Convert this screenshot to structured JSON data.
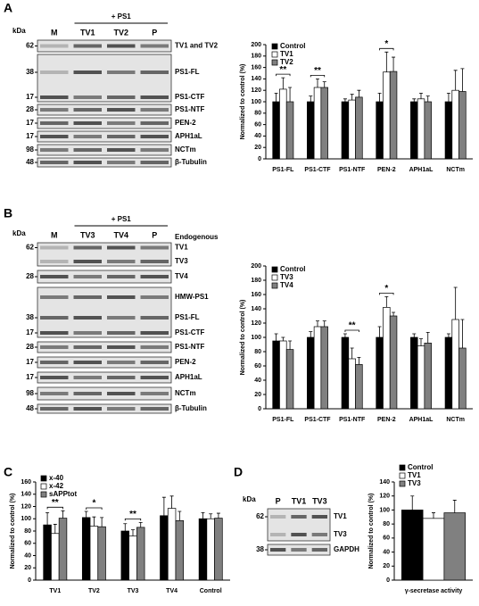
{
  "panel_labels": [
    "A",
    "B",
    "C",
    "D"
  ],
  "blots": [
    {
      "kda": "kDa",
      "group": "+ PS1",
      "lanes": [
        "M",
        "TV1",
        "TV2",
        "P"
      ],
      "header_note": null,
      "rows": [
        {
          "marker": "62",
          "label": "TV1 and TV2"
        },
        {
          "marker": "38",
          "label": "PS1-FL"
        },
        {
          "marker": "17",
          "label": "PS1-CTF"
        },
        {
          "marker": "28",
          "label": "PS1-NTF"
        },
        {
          "marker": "17",
          "label": "PEN-2"
        },
        {
          "marker": "17",
          "label": "APH1aL"
        },
        {
          "marker": "98",
          "label": "NCTm"
        },
        {
          "marker": "48",
          "label": "β-Tubulin"
        }
      ]
    },
    {
      "kda": "kDa",
      "group": "+ PS1",
      "lanes": [
        "M",
        "TV3",
        "TV4",
        "P"
      ],
      "header_note": "Endogenous",
      "rows": [
        {
          "marker": "62",
          "label": "TV1"
        },
        {
          "marker": null,
          "label": "TV3"
        },
        {
          "marker": "28",
          "label": "TV4"
        },
        {
          "marker": null,
          "label": "HMW-PS1"
        },
        {
          "marker": "38",
          "label": "PS1-FL"
        },
        {
          "marker": "17",
          "label": "PS1-CTF"
        },
        {
          "marker": "28",
          "label": "PS1-NTF"
        },
        {
          "marker": "17",
          "label": "PEN-2"
        },
        {
          "marker": "17",
          "label": "APH1aL"
        },
        {
          "marker": "98",
          "label": "NCTm"
        },
        {
          "marker": "48",
          "label": "β-Tubulin"
        }
      ]
    },
    {
      "kda": "kDa",
      "group": null,
      "lanes": [
        "P",
        "TV1",
        "TV3"
      ],
      "header_note": null,
      "rows": [
        {
          "marker": "62",
          "label": "TV1"
        },
        {
          "marker": null,
          "label": "TV3"
        },
        {
          "marker": "38",
          "label": "GAPDH"
        }
      ]
    }
  ],
  "chart_data": [
    {
      "type": "bar",
      "ylabel": "Normalized to control (%)",
      "categories": [
        "PS1-FL",
        "PS1-CTF",
        "PS1-NTF",
        "PEN-2",
        "APH1aL",
        "NCTm"
      ],
      "series": [
        {
          "name": "Control",
          "color": "#000000",
          "values": [
            100,
            100,
            100,
            100,
            100,
            100
          ],
          "errors": [
            15,
            10,
            5,
            15,
            5,
            15
          ]
        },
        {
          "name": "TV1",
          "color": "#ffffff",
          "values": [
            122,
            125,
            103,
            152,
            105,
            120
          ],
          "errors": [
            20,
            15,
            10,
            35,
            10,
            35
          ]
        },
        {
          "name": "TV2",
          "color": "#808080",
          "values": [
            100,
            125,
            108,
            153,
            100,
            118
          ],
          "errors": [
            25,
            10,
            12,
            25,
            10,
            40
          ]
        }
      ],
      "significance": [
        "**",
        "**",
        null,
        "*",
        null,
        null
      ],
      "ylim": [
        0,
        200
      ],
      "yticks": [
        0,
        20,
        40,
        60,
        80,
        100,
        120,
        140,
        160,
        180,
        200
      ],
      "legend": "upper left"
    },
    {
      "type": "bar",
      "ylabel": "Normalized to control (%)",
      "categories": [
        "PS1-FL",
        "PS1-CTF",
        "PS1-NTF",
        "PEN-2",
        "APH1aL",
        "NCTm"
      ],
      "series": [
        {
          "name": "Control",
          "color": "#000000",
          "values": [
            95,
            100,
            100,
            100,
            100,
            100
          ],
          "errors": [
            10,
            8,
            5,
            15,
            5,
            5
          ]
        },
        {
          "name": "TV3",
          "color": "#ffffff",
          "values": [
            95,
            115,
            70,
            142,
            88,
            125
          ],
          "errors": [
            5,
            8,
            15,
            15,
            10,
            45
          ]
        },
        {
          "name": "TV4",
          "color": "#808080",
          "values": [
            83,
            115,
            62,
            130,
            92,
            85
          ],
          "errors": [
            12,
            8,
            10,
            5,
            15,
            40
          ]
        }
      ],
      "significance": [
        null,
        null,
        "**",
        "*",
        null,
        null
      ],
      "ylim": [
        0,
        200
      ],
      "yticks": [
        0,
        20,
        40,
        60,
        80,
        100,
        120,
        140,
        160,
        180,
        200
      ],
      "legend": "upper left"
    },
    {
      "type": "bar",
      "ylabel": "Normalized to control (%)",
      "categories": [
        "TV1",
        "TV2",
        "TV3",
        "TV4",
        "Control"
      ],
      "series": [
        {
          "name": "x-40",
          "color": "#000000",
          "values": [
            90,
            102,
            80,
            105,
            100
          ],
          "errors": [
            20,
            10,
            12,
            30,
            10
          ]
        },
        {
          "name": "x-42",
          "color": "#ffffff",
          "values": [
            76,
            88,
            72,
            117,
            100
          ],
          "errors": [
            15,
            15,
            10,
            20,
            8
          ]
        },
        {
          "name": "sAPPtot",
          "color": "#808080",
          "values": [
            101,
            87,
            86,
            97,
            101
          ],
          "errors": [
            12,
            15,
            8,
            15,
            8
          ]
        }
      ],
      "significance": [
        "**",
        "*",
        "**",
        null,
        null
      ],
      "ylim": [
        0,
        160
      ],
      "yticks": [
        0,
        20,
        40,
        60,
        80,
        100,
        120,
        140,
        160
      ],
      "legend": "upper left"
    },
    {
      "type": "bar",
      "ylabel": "Normalized to control (%)",
      "categories": [
        "γ-secretase activity"
      ],
      "series": [
        {
          "name": "Control",
          "color": "#000000",
          "values": [
            100
          ],
          "errors": [
            20
          ]
        },
        {
          "name": "TV1",
          "color": "#ffffff",
          "values": [
            88
          ],
          "errors": [
            8
          ]
        },
        {
          "name": "TV3",
          "color": "#808080",
          "values": [
            96
          ],
          "errors": [
            18
          ]
        }
      ],
      "significance": [
        null
      ],
      "ylim": [
        0,
        140
      ],
      "yticks": [
        0,
        20,
        40,
        60,
        80,
        100,
        120,
        140
      ],
      "legend": "upper left"
    }
  ]
}
